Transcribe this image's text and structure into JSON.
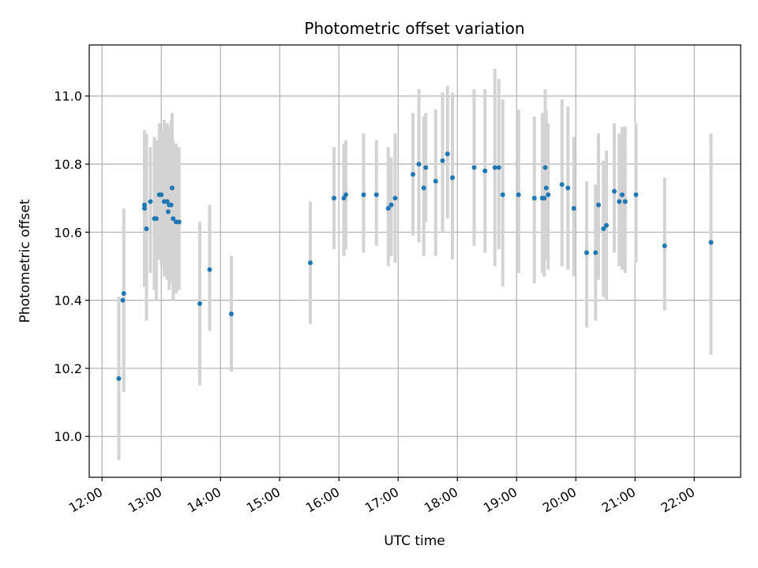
{
  "chart_data": {
    "type": "scatter",
    "title": "Photometric offset variation",
    "xlabel": "UTC time",
    "ylabel": "Photometric offset",
    "grid": true,
    "xlim": [
      "11:47",
      "22:47"
    ],
    "ylim": [
      9.88,
      11.15
    ],
    "x_ticks": [
      "12:00",
      "13:00",
      "14:00",
      "15:00",
      "16:00",
      "17:00",
      "18:00",
      "19:00",
      "20:00",
      "21:00",
      "22:00"
    ],
    "y_ticks": [
      "10.0",
      "10.2",
      "10.4",
      "10.6",
      "10.8",
      "11.0"
    ],
    "colors": {
      "marker": "#1f77b4",
      "errorbar": "#d3d3d3",
      "grid": "#b0b0b0"
    },
    "series": [
      {
        "x": [
          "12:17",
          "12:21",
          "12:22",
          "12:43",
          "12:43",
          "12:45",
          "12:49",
          "12:53",
          "12:55",
          "12:58",
          "13:00",
          "13:03",
          "13:06",
          "13:07",
          "13:08",
          "13:10",
          "13:11",
          "13:12",
          "13:15",
          "13:18",
          "13:39",
          "13:49",
          "14:11",
          "15:31",
          "15:55",
          "16:05",
          "16:07",
          "16:25",
          "16:38",
          "16:50",
          "16:53",
          "16:57",
          "17:15",
          "17:21",
          "17:26",
          "17:28",
          "17:38",
          "17:45",
          "17:50",
          "17:55",
          "18:17",
          "18:28",
          "18:38",
          "18:42",
          "18:46",
          "19:02",
          "19:18",
          "19:26",
          "19:28",
          "19:29",
          "19:30",
          "19:32",
          "19:46",
          "19:52",
          "19:58",
          "20:11",
          "20:20",
          "20:23",
          "20:28",
          "20:31",
          "20:39",
          "20:44",
          "20:47",
          "20:50",
          "21:01",
          "21:30",
          "22:17"
        ],
        "y": [
          10.17,
          10.4,
          10.42,
          10.67,
          10.68,
          10.61,
          10.69,
          10.64,
          10.64,
          10.71,
          10.71,
          10.69,
          10.69,
          10.66,
          10.68,
          10.68,
          10.73,
          10.64,
          10.63,
          10.63,
          10.39,
          10.49,
          10.36,
          10.51,
          10.7,
          10.7,
          10.71,
          10.71,
          10.71,
          10.67,
          10.68,
          10.7,
          10.77,
          10.8,
          10.73,
          10.79,
          10.75,
          10.81,
          10.83,
          10.76,
          10.79,
          10.78,
          10.79,
          10.79,
          10.71,
          10.71,
          10.7,
          10.7,
          10.7,
          10.79,
          10.73,
          10.71,
          10.74,
          10.73,
          10.67,
          10.54,
          10.54,
          10.68,
          10.61,
          10.62,
          10.72,
          10.69,
          10.71,
          10.69,
          10.71,
          10.56,
          10.57
        ],
        "yerr_low": [
          9.93,
          10.4,
          10.13,
          10.44,
          10.46,
          10.34,
          10.48,
          10.43,
          10.4,
          10.52,
          10.5,
          10.47,
          10.46,
          10.46,
          10.43,
          10.45,
          10.54,
          10.4,
          10.42,
          10.43,
          10.15,
          10.31,
          10.19,
          10.33,
          10.55,
          10.53,
          10.55,
          10.54,
          10.56,
          10.5,
          10.53,
          10.51,
          10.59,
          10.57,
          10.53,
          10.63,
          10.53,
          10.6,
          10.64,
          10.52,
          10.56,
          10.54,
          10.5,
          10.55,
          10.44,
          10.48,
          10.45,
          10.48,
          10.47,
          10.56,
          10.52,
          10.49,
          10.5,
          10.49,
          10.47,
          10.32,
          10.34,
          10.46,
          10.41,
          10.4,
          10.54,
          10.5,
          10.49,
          10.48,
          10.51,
          10.37,
          10.24
        ],
        "yerr_high": [
          10.41,
          10.4,
          10.67,
          10.9,
          10.89,
          10.89,
          10.85,
          10.88,
          10.87,
          10.92,
          10.9,
          10.93,
          10.92,
          10.87,
          10.91,
          10.93,
          10.95,
          10.87,
          10.86,
          10.85,
          10.63,
          10.68,
          10.53,
          10.69,
          10.85,
          10.86,
          10.87,
          10.89,
          10.87,
          10.85,
          10.82,
          10.89,
          10.95,
          11.02,
          10.94,
          10.95,
          10.96,
          11.01,
          11.03,
          11.01,
          11.02,
          11.02,
          11.08,
          11.05,
          10.99,
          10.96,
          10.94,
          10.95,
          10.93,
          11.02,
          10.96,
          10.92,
          10.99,
          10.97,
          10.88,
          10.75,
          10.74,
          10.89,
          10.81,
          10.84,
          10.92,
          10.89,
          10.91,
          10.91,
          10.92,
          10.76,
          10.89
        ]
      }
    ]
  }
}
